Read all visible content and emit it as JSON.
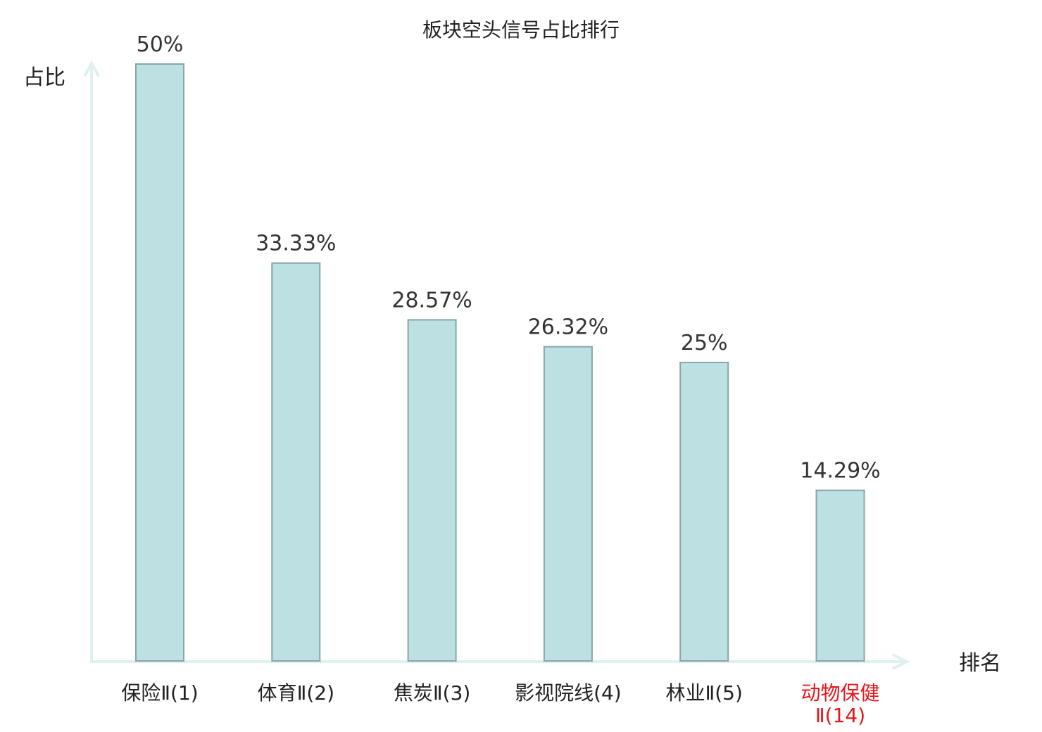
{
  "chart_data": {
    "type": "bar",
    "title": "板块空头信号占比排行",
    "ylabel": "占比",
    "xlabel": "排名",
    "ylim": [
      0,
      50
    ],
    "grid": false,
    "categories": [
      {
        "label": "保险Ⅱ(1)",
        "lines": [
          "保险Ⅱ(1)"
        ],
        "highlight": false
      },
      {
        "label": "体育Ⅱ(2)",
        "lines": [
          "体育Ⅱ(2)"
        ],
        "highlight": false
      },
      {
        "label": "焦炭Ⅱ(3)",
        "lines": [
          "焦炭Ⅱ(3)"
        ],
        "highlight": false
      },
      {
        "label": "影视院线(4)",
        "lines": [
          "影视院线(4)"
        ],
        "highlight": false
      },
      {
        "label": "林业Ⅱ(5)",
        "lines": [
          "林业Ⅱ(5)"
        ],
        "highlight": false
      },
      {
        "label": "动物保健Ⅱ(14)",
        "lines": [
          "动物保健",
          "Ⅱ(14)"
        ],
        "highlight": true
      }
    ],
    "values": [
      50,
      33.33,
      28.57,
      26.32,
      25,
      14.29
    ],
    "value_labels": [
      "50%",
      "33.33%",
      "28.57%",
      "26.32%",
      "25%",
      "14.29%"
    ]
  },
  "colors": {
    "bar_fill": "#bde0e2",
    "bar_stroke": "#86a6a8",
    "axis": "#dff0ef",
    "highlight_text": "#e8161b",
    "text": "#222222"
  }
}
